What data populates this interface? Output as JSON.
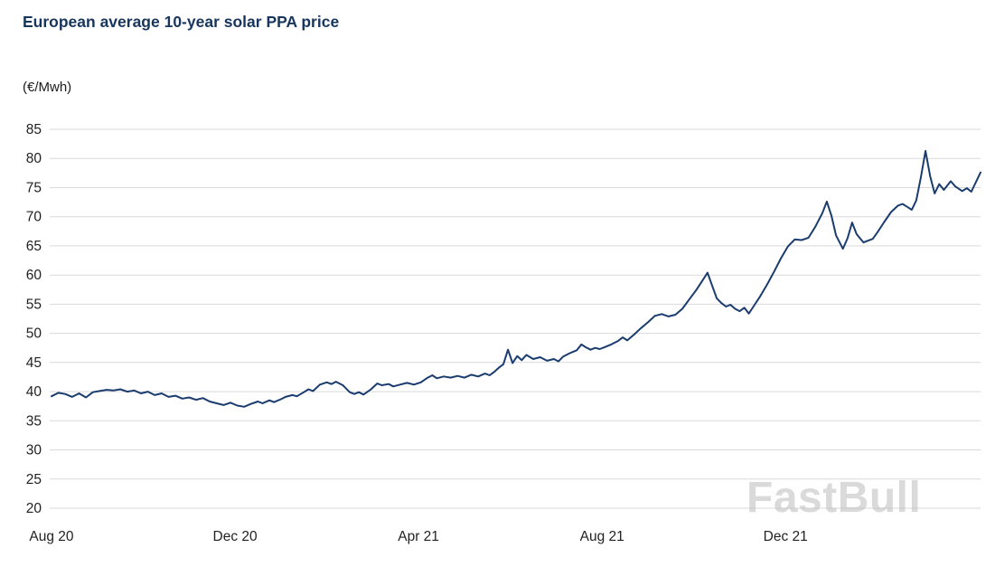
{
  "watermark": {
    "text": "FastBull"
  },
  "chart_data": {
    "type": "line",
    "title": "European average 10-year solar PPA price",
    "ylabel": "(€/Mwh)",
    "xlabel": "",
    "x_unit": "months since Aug 2020",
    "xlim": [
      0,
      20.25
    ],
    "ylim": [
      20,
      85
    ],
    "grid": "horizontal",
    "legend": "none",
    "grid_color": "#d9d9d9",
    "tick_color": "#222222",
    "line_color": "#1a3c6e",
    "title_color": "#17365d",
    "y_ticks": [
      85,
      80,
      75,
      70,
      65,
      60,
      55,
      50,
      45,
      40,
      35,
      30,
      25,
      20
    ],
    "x_ticks": [
      {
        "label": "Aug 20",
        "x": 0
      },
      {
        "label": "Dec 20",
        "x": 4
      },
      {
        "label": "Apr 21",
        "x": 8
      },
      {
        "label": "Aug 21",
        "x": 12
      },
      {
        "label": "Dec 21",
        "x": 16
      }
    ],
    "series": [
      {
        "name": "European average 10-year solar PPA price (€/MWh)",
        "points": [
          [
            0,
            39.2
          ],
          [
            0.15,
            39.8
          ],
          [
            0.3,
            39.6
          ],
          [
            0.45,
            39.1
          ],
          [
            0.6,
            39.7
          ],
          [
            0.75,
            39.0
          ],
          [
            0.9,
            39.9
          ],
          [
            1.05,
            40.1
          ],
          [
            1.2,
            40.3
          ],
          [
            1.35,
            40.2
          ],
          [
            1.5,
            40.4
          ],
          [
            1.65,
            40.0
          ],
          [
            1.8,
            40.2
          ],
          [
            1.95,
            39.7
          ],
          [
            2.1,
            40.0
          ],
          [
            2.25,
            39.4
          ],
          [
            2.4,
            39.7
          ],
          [
            2.55,
            39.1
          ],
          [
            2.7,
            39.3
          ],
          [
            2.85,
            38.8
          ],
          [
            3.0,
            39.0
          ],
          [
            3.15,
            38.6
          ],
          [
            3.3,
            38.9
          ],
          [
            3.45,
            38.3
          ],
          [
            3.6,
            38.0
          ],
          [
            3.75,
            37.7
          ],
          [
            3.9,
            38.1
          ],
          [
            4.05,
            37.6
          ],
          [
            4.2,
            37.4
          ],
          [
            4.35,
            37.9
          ],
          [
            4.5,
            38.3
          ],
          [
            4.6,
            38.0
          ],
          [
            4.75,
            38.5
          ],
          [
            4.85,
            38.2
          ],
          [
            5.0,
            38.7
          ],
          [
            5.1,
            39.1
          ],
          [
            5.25,
            39.4
          ],
          [
            5.35,
            39.2
          ],
          [
            5.5,
            39.9
          ],
          [
            5.6,
            40.4
          ],
          [
            5.7,
            40.1
          ],
          [
            5.85,
            41.2
          ],
          [
            6.0,
            41.6
          ],
          [
            6.1,
            41.3
          ],
          [
            6.2,
            41.7
          ],
          [
            6.35,
            41.1
          ],
          [
            6.5,
            39.9
          ],
          [
            6.6,
            39.6
          ],
          [
            6.7,
            39.9
          ],
          [
            6.8,
            39.5
          ],
          [
            6.95,
            40.3
          ],
          [
            7.1,
            41.4
          ],
          [
            7.2,
            41.1
          ],
          [
            7.35,
            41.3
          ],
          [
            7.45,
            40.9
          ],
          [
            7.6,
            41.2
          ],
          [
            7.75,
            41.5
          ],
          [
            7.9,
            41.2
          ],
          [
            8.05,
            41.6
          ],
          [
            8.2,
            42.4
          ],
          [
            8.3,
            42.8
          ],
          [
            8.4,
            42.3
          ],
          [
            8.55,
            42.6
          ],
          [
            8.7,
            42.4
          ],
          [
            8.85,
            42.7
          ],
          [
            9.0,
            42.4
          ],
          [
            9.15,
            42.9
          ],
          [
            9.3,
            42.6
          ],
          [
            9.45,
            43.1
          ],
          [
            9.55,
            42.8
          ],
          [
            9.65,
            43.4
          ],
          [
            9.75,
            44.1
          ],
          [
            9.85,
            44.7
          ],
          [
            9.95,
            47.2
          ],
          [
            10.05,
            44.9
          ],
          [
            10.15,
            46.1
          ],
          [
            10.25,
            45.4
          ],
          [
            10.35,
            46.3
          ],
          [
            10.5,
            45.6
          ],
          [
            10.65,
            45.9
          ],
          [
            10.8,
            45.3
          ],
          [
            10.95,
            45.6
          ],
          [
            11.05,
            45.2
          ],
          [
            11.15,
            46.0
          ],
          [
            11.3,
            46.6
          ],
          [
            11.45,
            47.1
          ],
          [
            11.55,
            48.1
          ],
          [
            11.65,
            47.6
          ],
          [
            11.75,
            47.2
          ],
          [
            11.85,
            47.5
          ],
          [
            11.95,
            47.3
          ],
          [
            12.05,
            47.6
          ],
          [
            12.2,
            48.1
          ],
          [
            12.35,
            48.7
          ],
          [
            12.45,
            49.3
          ],
          [
            12.55,
            48.8
          ],
          [
            12.7,
            49.8
          ],
          [
            12.85,
            50.9
          ],
          [
            13.0,
            51.9
          ],
          [
            13.15,
            53.0
          ],
          [
            13.3,
            53.3
          ],
          [
            13.45,
            52.9
          ],
          [
            13.6,
            53.2
          ],
          [
            13.75,
            54.2
          ],
          [
            13.9,
            55.8
          ],
          [
            14.05,
            57.4
          ],
          [
            14.2,
            59.2
          ],
          [
            14.3,
            60.4
          ],
          [
            14.4,
            58.2
          ],
          [
            14.5,
            56.0
          ],
          [
            14.6,
            55.2
          ],
          [
            14.7,
            54.6
          ],
          [
            14.8,
            54.9
          ],
          [
            14.9,
            54.2
          ],
          [
            15.0,
            53.8
          ],
          [
            15.1,
            54.4
          ],
          [
            15.2,
            53.4
          ],
          [
            15.3,
            54.6
          ],
          [
            15.45,
            56.4
          ],
          [
            15.6,
            58.4
          ],
          [
            15.75,
            60.6
          ],
          [
            15.9,
            62.9
          ],
          [
            16.05,
            64.9
          ],
          [
            16.2,
            66.1
          ],
          [
            16.35,
            66.0
          ],
          [
            16.5,
            66.4
          ],
          [
            16.65,
            68.3
          ],
          [
            16.8,
            70.6
          ],
          [
            16.9,
            72.6
          ],
          [
            17.0,
            70.2
          ],
          [
            17.1,
            66.8
          ],
          [
            17.25,
            64.5
          ],
          [
            17.35,
            66.3
          ],
          [
            17.45,
            69.0
          ],
          [
            17.55,
            67.0
          ],
          [
            17.7,
            65.6
          ],
          [
            17.8,
            65.9
          ],
          [
            17.9,
            66.2
          ],
          [
            18.0,
            67.3
          ],
          [
            18.15,
            69.1
          ],
          [
            18.3,
            70.8
          ],
          [
            18.45,
            71.9
          ],
          [
            18.55,
            72.2
          ],
          [
            18.65,
            71.7
          ],
          [
            18.75,
            71.2
          ],
          [
            18.85,
            72.8
          ],
          [
            18.95,
            76.8
          ],
          [
            19.05,
            81.3
          ],
          [
            19.15,
            77.0
          ],
          [
            19.25,
            74.0
          ],
          [
            19.35,
            75.6
          ],
          [
            19.45,
            74.6
          ],
          [
            19.6,
            76.1
          ],
          [
            19.7,
            75.2
          ],
          [
            19.85,
            74.4
          ],
          [
            19.95,
            74.9
          ],
          [
            20.05,
            74.3
          ],
          [
            20.25,
            77.6
          ]
        ]
      }
    ]
  }
}
